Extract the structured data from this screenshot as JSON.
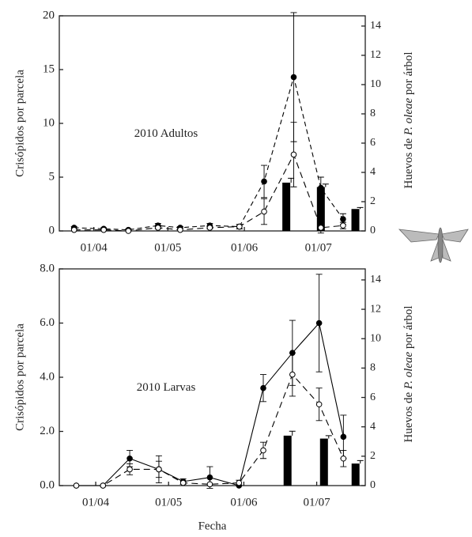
{
  "chart_data": [
    {
      "type": "line",
      "annotation": "2010  Adultos",
      "ylabel": "Crisópidos por parcela",
      "y2label": [
        "Huevos de ",
        "P. oleae",
        " por árbol"
      ],
      "xlim": [
        77,
        201
      ],
      "xticks": [
        {
          "value": 91,
          "label": "01/04"
        },
        {
          "value": 121,
          "label": "01/05"
        },
        {
          "value": 152,
          "label": "01/06"
        },
        {
          "value": 182,
          "label": "01/07"
        }
      ],
      "ylim": [
        0,
        20
      ],
      "yticks": [
        0,
        5,
        10,
        15,
        20
      ],
      "y2lim": [
        0,
        14.7
      ],
      "y2ticks": [
        0,
        2,
        4,
        6,
        8,
        10,
        12,
        14
      ],
      "series": [
        {
          "type": "bar",
          "axis": "y2",
          "color": "#000000",
          "x": [
            169,
            183,
            197
          ],
          "values": [
            3.3,
            3.0,
            1.5
          ],
          "errors": [
            0.3,
            0.2,
            0.1
          ]
        },
        {
          "type": "line",
          "marker": "filled",
          "dash": "6,4",
          "color": "#000000",
          "x": [
            83,
            95,
            105,
            117,
            126,
            138,
            150,
            160,
            172,
            183,
            192
          ],
          "values": [
            0.3,
            0.2,
            0.1,
            0.5,
            0.3,
            0.5,
            0.4,
            4.6,
            14.3,
            4.0,
            1.1
          ],
          "errors": [
            0.1,
            0.1,
            0.1,
            0.2,
            0.1,
            0.2,
            0.2,
            1.5,
            6.0,
            1.0,
            0.5
          ]
        },
        {
          "type": "line",
          "marker": "open",
          "dash": "8,5",
          "color": "#000000",
          "x": [
            83,
            95,
            105,
            117,
            126,
            138,
            150,
            160,
            172,
            183,
            192
          ],
          "values": [
            0.1,
            0.1,
            0.0,
            0.3,
            0.1,
            0.3,
            0.4,
            1.8,
            7.1,
            0.3,
            0.5
          ],
          "errors": [
            null,
            null,
            null,
            0.1,
            null,
            0.1,
            0.2,
            1.2,
            3.0,
            0.5,
            0.3
          ]
        }
      ]
    },
    {
      "type": "line",
      "annotation": "2010  Larvas",
      "xlabel": "Fecha",
      "ylabel": "Crisópidos por parcela",
      "y2label": [
        "Huevos de ",
        "P. oleae",
        " por árbol"
      ],
      "xlim": [
        76,
        202
      ],
      "xticks": [
        {
          "value": 91,
          "label": "01/04"
        },
        {
          "value": 121,
          "label": "01/05"
        },
        {
          "value": 152,
          "label": "01/06"
        },
        {
          "value": 182,
          "label": "01/07"
        }
      ],
      "ylim": [
        0,
        8
      ],
      "yticks": [
        {
          "value": 0,
          "label": "0.0"
        },
        {
          "value": 2,
          "label": "2.0"
        },
        {
          "value": 4,
          "label": "4.0"
        },
        {
          "value": 6,
          "label": "6.0"
        },
        {
          "value": 8,
          "label": "8.0"
        }
      ],
      "y2lim": [
        0,
        14.75
      ],
      "y2ticks": [
        0,
        2,
        4,
        6,
        8,
        10,
        12,
        14
      ],
      "series": [
        {
          "type": "bar",
          "axis": "y2",
          "color": "#000000",
          "x": [
            170,
            185,
            198
          ],
          "values": [
            3.4,
            3.2,
            1.5
          ],
          "errors": [
            0.3,
            0.2,
            0.2
          ]
        },
        {
          "type": "line",
          "marker": "filled",
          "dash": "none",
          "color": "#000000",
          "x": [
            83,
            94,
            105,
            117,
            127,
            138,
            150,
            160,
            172,
            183,
            193
          ],
          "values": [
            0.0,
            0.0,
            1.0,
            0.6,
            0.15,
            0.3,
            0.0,
            3.6,
            4.9,
            6.0,
            1.8
          ],
          "errors": [
            null,
            null,
            0.3,
            0.5,
            0.1,
            0.4,
            null,
            0.5,
            1.2,
            1.8,
            0.8
          ]
        },
        {
          "type": "line",
          "marker": "open",
          "dash": "8,5",
          "color": "#000000",
          "x": [
            83,
            94,
            105,
            117,
            127,
            138,
            150,
            160,
            172,
            183,
            193
          ],
          "values": [
            0.0,
            0.0,
            0.6,
            0.6,
            0.1,
            0.05,
            0.1,
            1.3,
            4.1,
            3.0,
            1.0
          ],
          "errors": [
            null,
            null,
            0.2,
            0.3,
            null,
            null,
            0.1,
            0.3,
            0.8,
            0.6,
            0.3
          ]
        }
      ]
    }
  ]
}
